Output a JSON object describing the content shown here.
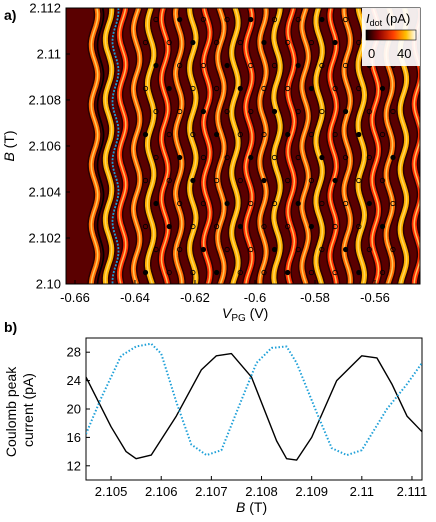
{
  "chart_data": [
    {
      "panel_label": "a)",
      "type": "heatmap",
      "xlabel_main": "V",
      "xlabel_sub": "PG",
      "xlabel_unit": " (V)",
      "ylabel_main": "B",
      "ylabel_unit": " (T)",
      "xlim": [
        -0.663,
        -0.545
      ],
      "ylim": [
        2.1,
        2.112
      ],
      "x_ticks": [
        -0.66,
        -0.64,
        -0.62,
        -0.6,
        -0.58,
        -0.56
      ],
      "x_tick_labels": [
        "-0.66",
        "-0.64",
        "-0.62",
        "-0.6",
        "-0.58",
        "-0.56"
      ],
      "y_ticks": [
        2.1,
        2.102,
        2.104,
        2.106,
        2.108,
        2.11,
        2.112
      ],
      "y_tick_labels": [
        "2.10",
        "2.102",
        "2.104",
        "2.106",
        "2.108",
        "2.11",
        "2.112"
      ],
      "colorbar": {
        "label_main": "I",
        "label_sub": "dot",
        "label_unit": " (pA)",
        "min_label": "0",
        "max_label": "40",
        "range": [
          0,
          40
        ],
        "colors": [
          "#000000",
          "#8a0000",
          "#ff4000",
          "#ffc000",
          "#ffffff"
        ]
      },
      "stripe_count": 24,
      "stripe_x_start": -0.6535,
      "stripe_x_spacing": 0.00468,
      "highlight_traces": [
        {
          "color": "#000000",
          "x": -0.6515
        },
        {
          "color": "#1ea0d8",
          "x": -0.6465
        }
      ]
    },
    {
      "panel_label": "b)",
      "type": "line",
      "xlabel_main": "B",
      "xlabel_unit": " (T)",
      "ylabel_line1": "Coulomb peak",
      "ylabel_line2": "current (pA)",
      "xlim": [
        2.1045,
        2.1112
      ],
      "ylim": [
        10,
        30
      ],
      "x_ticks": [
        2.105,
        2.106,
        2.107,
        2.108,
        2.109,
        2.11,
        2.111
      ],
      "x_tick_labels": [
        "2.105",
        "2.106",
        "2.107",
        "2.108",
        "2.109",
        "2.11",
        "2.111"
      ],
      "y_ticks": [
        12,
        16,
        20,
        24,
        28
      ],
      "y_tick_labels": [
        "12",
        "16",
        "20",
        "24",
        "28"
      ],
      "series": [
        {
          "color": "#000000",
          "style": "solid",
          "x": [
            2.1045,
            2.105,
            2.1053,
            2.1055,
            2.1058,
            2.1063,
            2.1068,
            2.1071,
            2.1074,
            2.1078,
            2.1083,
            2.1085,
            2.1087,
            2.109,
            2.1095,
            2.11,
            2.1103,
            2.1106,
            2.1109,
            2.1112
          ],
          "y": [
            24.5,
            17.5,
            14.0,
            13.0,
            13.5,
            19.0,
            25.5,
            27.5,
            27.8,
            24.5,
            15.5,
            13.0,
            12.8,
            16.0,
            24.0,
            27.5,
            27.2,
            23.5,
            19.0,
            16.8
          ]
        },
        {
          "color": "#1ea0d8",
          "style": "dotted",
          "x": [
            2.1045,
            2.1048,
            2.1052,
            2.1055,
            2.1058,
            2.106,
            2.1063,
            2.1066,
            2.1069,
            2.1072,
            2.1075,
            2.1079,
            2.1082,
            2.1085,
            2.1087,
            2.1091,
            2.1094,
            2.1097,
            2.11,
            2.1105,
            2.1109,
            2.1112
          ],
          "y": [
            16.5,
            21.5,
            27.5,
            28.8,
            29.2,
            27.8,
            21.0,
            15.0,
            13.5,
            14.2,
            19.5,
            26.5,
            28.6,
            28.8,
            26.5,
            19.5,
            14.5,
            13.5,
            14.2,
            20.0,
            23.5,
            26.5
          ]
        }
      ]
    }
  ]
}
